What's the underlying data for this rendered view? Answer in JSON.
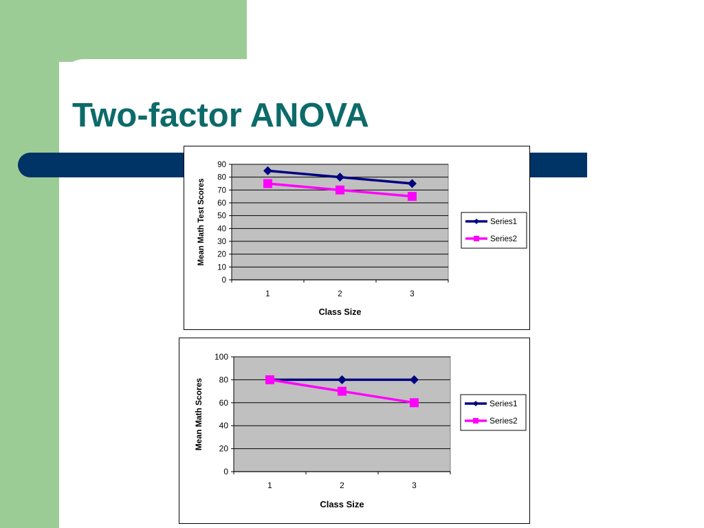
{
  "slide": {
    "title": "Two-factor ANOVA"
  },
  "colors": {
    "background_green": "#9ccc95",
    "navy_bar": "#003366",
    "title": "#0d6a6a",
    "plot_area": "#c0c0c0",
    "series1": "#000080",
    "series2": "#ff00ff"
  },
  "chart_data": [
    {
      "type": "line",
      "title": "",
      "xlabel": "Class Size",
      "ylabel": "Mean Math Test Scores",
      "categories": [
        "1",
        "2",
        "3"
      ],
      "series": [
        {
          "name": "Series1",
          "values": [
            85,
            80,
            75
          ],
          "color": "#000080",
          "marker": "diamond"
        },
        {
          "name": "Series2",
          "values": [
            75,
            70,
            65
          ],
          "color": "#ff00ff",
          "marker": "square"
        }
      ],
      "ylim": [
        0,
        90
      ],
      "yticks": [
        0,
        10,
        20,
        30,
        40,
        50,
        60,
        70,
        80,
        90
      ],
      "grid": true,
      "legend": "right"
    },
    {
      "type": "line",
      "title": "",
      "xlabel": "Class Size",
      "ylabel": "Mean Math Scores",
      "categories": [
        "1",
        "2",
        "3"
      ],
      "series": [
        {
          "name": "Series1",
          "values": [
            80,
            80,
            80
          ],
          "color": "#000080",
          "marker": "diamond"
        },
        {
          "name": "Series2",
          "values": [
            80,
            70,
            60
          ],
          "color": "#ff00ff",
          "marker": "square"
        }
      ],
      "ylim": [
        0,
        100
      ],
      "yticks": [
        0,
        20,
        40,
        60,
        80,
        100
      ],
      "grid": true,
      "legend": "right"
    }
  ]
}
